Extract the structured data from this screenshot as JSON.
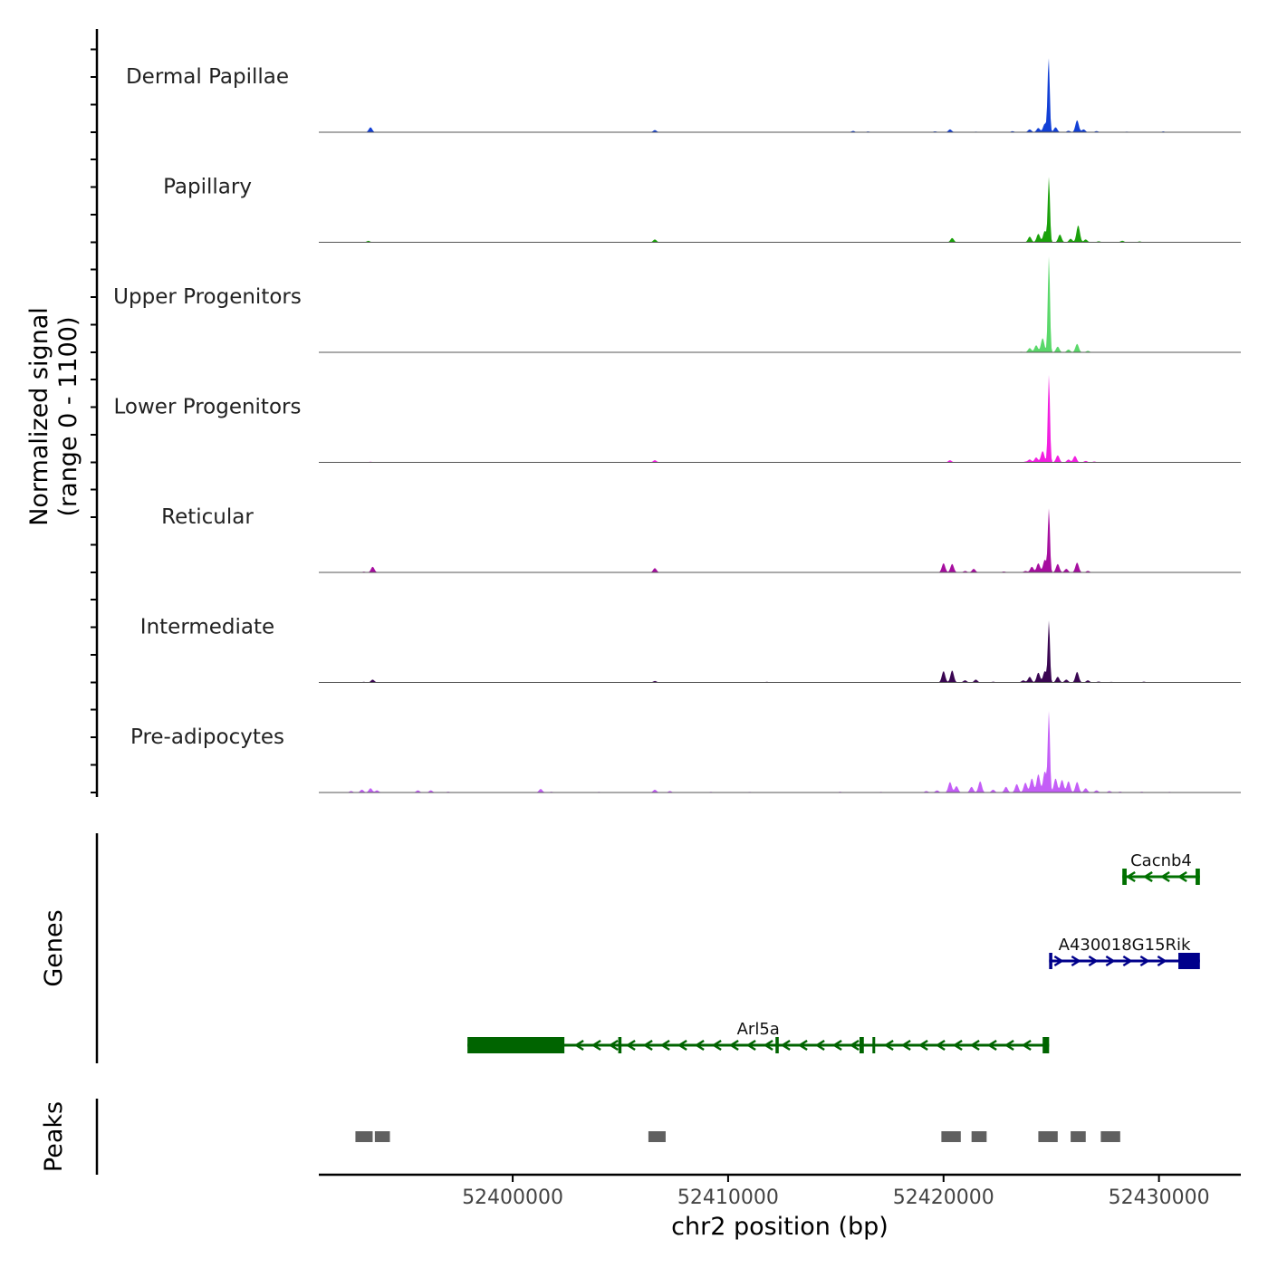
{
  "chart_data": {
    "type": "area",
    "title": "",
    "ylabel": [
      "Normalized signal",
      "(range 0 - 1100)"
    ],
    "ylim": [
      0,
      1100
    ],
    "xlabel": "chr2 position (bp)",
    "xlim": [
      52391000,
      52433800
    ],
    "xticks": [
      52400000,
      52410000,
      52420000,
      52430000
    ],
    "xtick_labels": [
      "52400000",
      "52410000",
      "52420000",
      "52430000"
    ],
    "grid": false,
    "tracks": [
      {
        "name": "Dermal Papillae",
        "color": "#1240d6",
        "peaks": [
          [
            52393400,
            70
          ],
          [
            52406600,
            30
          ],
          [
            52411800,
            6
          ],
          [
            52415800,
            18
          ],
          [
            52416500,
            10
          ],
          [
            52419600,
            12
          ],
          [
            52420300,
            40
          ],
          [
            52421500,
            8
          ],
          [
            52423200,
            14
          ],
          [
            52424000,
            40
          ],
          [
            52424400,
            60
          ],
          [
            52424700,
            120
          ],
          [
            52424880,
            1050
          ],
          [
            52425200,
            70
          ],
          [
            52425800,
            20
          ],
          [
            52426200,
            170
          ],
          [
            52426500,
            40
          ],
          [
            52427100,
            16
          ],
          [
            52428500,
            8
          ],
          [
            52430200,
            10
          ]
        ]
      },
      {
        "name": "Papillary",
        "color": "#1aa10a",
        "peaks": [
          [
            52393300,
            20
          ],
          [
            52396000,
            6
          ],
          [
            52406600,
            40
          ],
          [
            52411500,
            6
          ],
          [
            52420400,
            60
          ],
          [
            52424000,
            80
          ],
          [
            52424400,
            120
          ],
          [
            52424700,
            160
          ],
          [
            52424890,
            920
          ],
          [
            52425400,
            110
          ],
          [
            52425900,
            50
          ],
          [
            52426250,
            240
          ],
          [
            52426600,
            40
          ],
          [
            52427200,
            14
          ],
          [
            52428300,
            22
          ],
          [
            52429100,
            12
          ]
        ]
      },
      {
        "name": "Upper Progenitors",
        "color": "#5ad86a",
        "peaks": [
          [
            52423600,
            8
          ],
          [
            52424000,
            60
          ],
          [
            52424300,
            100
          ],
          [
            52424600,
            200
          ],
          [
            52424890,
            1360
          ],
          [
            52425300,
            80
          ],
          [
            52425800,
            40
          ],
          [
            52426200,
            120
          ],
          [
            52426700,
            20
          ]
        ]
      },
      {
        "name": "Lower Progenitors",
        "color": "#f21fe0",
        "peaks": [
          [
            52393400,
            8
          ],
          [
            52397500,
            6
          ],
          [
            52399800,
            6
          ],
          [
            52406600,
            30
          ],
          [
            52411600,
            6
          ],
          [
            52416800,
            6
          ],
          [
            52420300,
            30
          ],
          [
            52423800,
            10
          ],
          [
            52424000,
            40
          ],
          [
            52424300,
            70
          ],
          [
            52424600,
            160
          ],
          [
            52424890,
            1240
          ],
          [
            52425300,
            100
          ],
          [
            52425800,
            40
          ],
          [
            52426100,
            90
          ],
          [
            52426600,
            20
          ],
          [
            52427000,
            12
          ]
        ]
      },
      {
        "name": "Reticular",
        "color": "#a60e9f",
        "peaks": [
          [
            52393100,
            10
          ],
          [
            52393500,
            80
          ],
          [
            52396200,
            6
          ],
          [
            52406600,
            60
          ],
          [
            52412500,
            6
          ],
          [
            52420000,
            130
          ],
          [
            52420400,
            120
          ],
          [
            52421000,
            20
          ],
          [
            52421400,
            50
          ],
          [
            52422800,
            12
          ],
          [
            52423800,
            20
          ],
          [
            52424100,
            80
          ],
          [
            52424400,
            130
          ],
          [
            52424700,
            180
          ],
          [
            52424890,
            900
          ],
          [
            52425300,
            120
          ],
          [
            52425700,
            50
          ],
          [
            52426200,
            140
          ],
          [
            52426700,
            20
          ]
        ]
      },
      {
        "name": "Intermediate",
        "color": "#3a0652",
        "peaks": [
          [
            52393100,
            8
          ],
          [
            52393500,
            40
          ],
          [
            52395200,
            6
          ],
          [
            52406600,
            20
          ],
          [
            52409800,
            6
          ],
          [
            52411800,
            8
          ],
          [
            52415000,
            6
          ],
          [
            52420000,
            160
          ],
          [
            52420400,
            170
          ],
          [
            52421000,
            30
          ],
          [
            52421500,
            40
          ],
          [
            52422300,
            10
          ],
          [
            52423700,
            30
          ],
          [
            52424000,
            80
          ],
          [
            52424400,
            140
          ],
          [
            52424700,
            160
          ],
          [
            52424890,
            870
          ],
          [
            52425300,
            80
          ],
          [
            52425700,
            40
          ],
          [
            52426200,
            150
          ],
          [
            52426700,
            30
          ],
          [
            52427200,
            12
          ],
          [
            52427800,
            8
          ],
          [
            52429300,
            10
          ]
        ]
      },
      {
        "name": "Pre-adipocytes",
        "color": "#c45ef7",
        "peaks": [
          [
            52392500,
            20
          ],
          [
            52393000,
            40
          ],
          [
            52393400,
            60
          ],
          [
            52393700,
            30
          ],
          [
            52395600,
            30
          ],
          [
            52396200,
            30
          ],
          [
            52397000,
            10
          ],
          [
            52398500,
            6
          ],
          [
            52401300,
            50
          ],
          [
            52401800,
            10
          ],
          [
            52404000,
            8
          ],
          [
            52406600,
            40
          ],
          [
            52407300,
            20
          ],
          [
            52409200,
            8
          ],
          [
            52411000,
            8
          ],
          [
            52413200,
            6
          ],
          [
            52415200,
            10
          ],
          [
            52417100,
            8
          ],
          [
            52419200,
            20
          ],
          [
            52419700,
            30
          ],
          [
            52420300,
            150
          ],
          [
            52420600,
            90
          ],
          [
            52421300,
            80
          ],
          [
            52421700,
            160
          ],
          [
            52422300,
            40
          ],
          [
            52422900,
            80
          ],
          [
            52423400,
            120
          ],
          [
            52423800,
            140
          ],
          [
            52424100,
            200
          ],
          [
            52424400,
            260
          ],
          [
            52424700,
            300
          ],
          [
            52424890,
            1140
          ],
          [
            52425200,
            200
          ],
          [
            52425500,
            180
          ],
          [
            52425800,
            160
          ],
          [
            52426200,
            150
          ],
          [
            52426600,
            60
          ],
          [
            52427100,
            30
          ],
          [
            52427700,
            20
          ],
          [
            52428200,
            12
          ],
          [
            52429200,
            10
          ],
          [
            52430500,
            8
          ]
        ]
      }
    ],
    "genes": [
      {
        "name": "Cacnb4",
        "strand": "-",
        "color": "#007000",
        "row": 0,
        "start": 52428300,
        "end": 52431900,
        "exons": [
          [
            52428300,
            52428500
          ],
          [
            52431700,
            52431900
          ]
        ]
      },
      {
        "name": "A430018G15Rik",
        "strand": "+",
        "color": "#00008b",
        "row": 1,
        "start": 52424900,
        "end": 52431900,
        "exons": [
          [
            52424900,
            52425050
          ],
          [
            52430900,
            52431900
          ]
        ]
      },
      {
        "name": "Arl5a",
        "strand": "-",
        "color": "#006400",
        "row": 2,
        "start": 52397900,
        "end": 52424900,
        "exons": [
          [
            52397900,
            52402400
          ],
          [
            52404900,
            52405050
          ],
          [
            52412200,
            52412350
          ],
          [
            52416100,
            52416300
          ],
          [
            52416700,
            52416800
          ],
          [
            52424600,
            52424900
          ]
        ]
      }
    ],
    "peak_regions": [
      [
        52392700,
        52393500
      ],
      [
        52393600,
        52394300
      ],
      [
        52406300,
        52407100
      ],
      [
        52419900,
        52420800
      ],
      [
        52421300,
        52422000
      ],
      [
        52424400,
        52425300
      ],
      [
        52425900,
        52426600
      ],
      [
        52427300,
        52428200
      ]
    ],
    "panel_labels": {
      "genes": "Genes",
      "peaks": "Peaks"
    }
  }
}
